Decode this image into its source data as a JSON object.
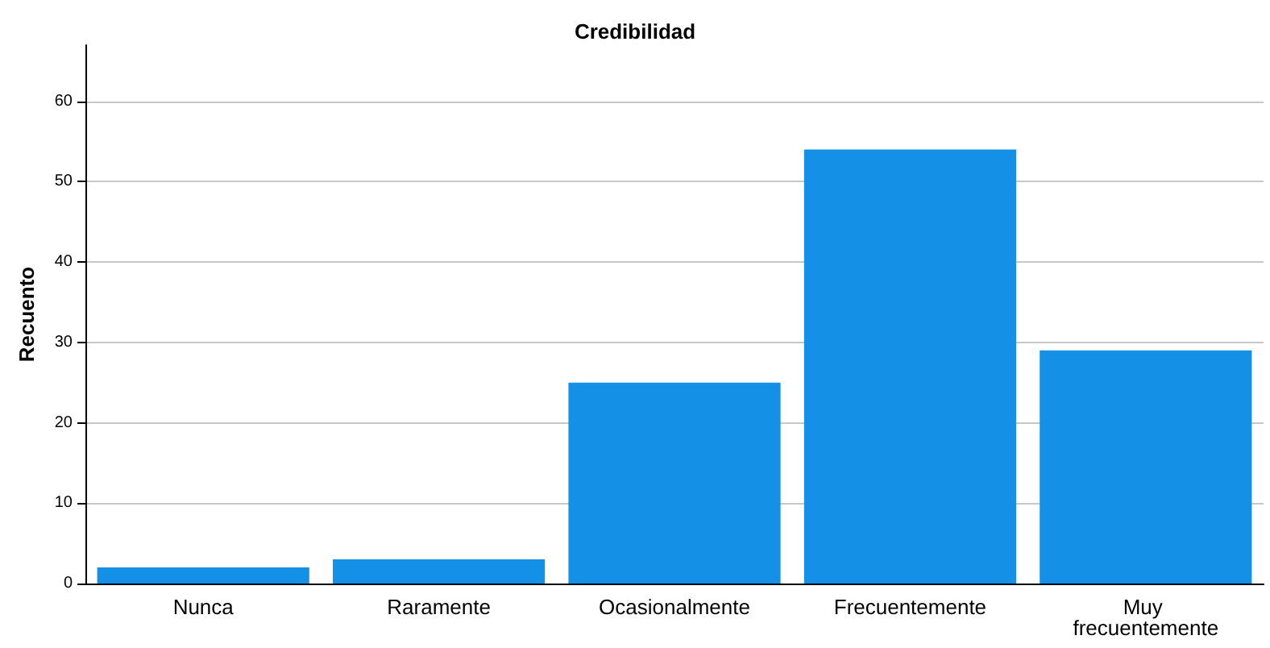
{
  "chart_data": {
    "type": "bar",
    "title": "Credibilidad",
    "ylabel": "Recuento",
    "categories": [
      "Nunca",
      "Raramente",
      "Ocasionalmente",
      "Frecuentemente",
      "Muy frecuentemente"
    ],
    "values": [
      2,
      3,
      25,
      54,
      29
    ],
    "color": "#1490e6",
    "ylim": [
      0,
      67
    ],
    "yticks": [
      0,
      10,
      20,
      30,
      40,
      50,
      60
    ],
    "grid": "y"
  }
}
